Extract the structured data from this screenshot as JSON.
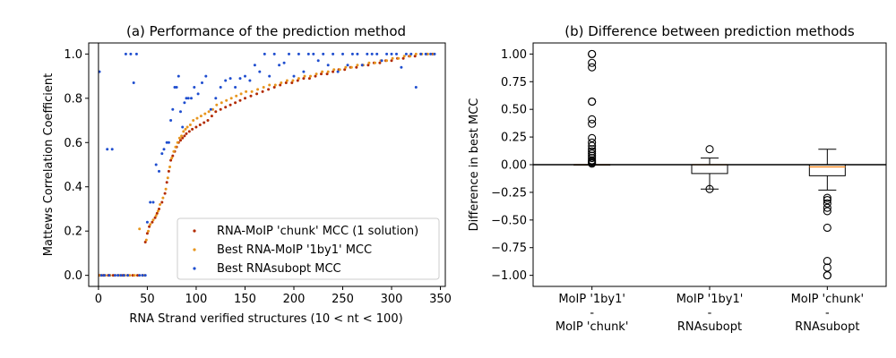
{
  "chart_data": [
    {
      "type": "scatter",
      "title": "(a) Performance of the prediction method",
      "xlabel": "RNA Strand verified structures (10 <  nt  < 100)",
      "ylabel": "Mattews Correlation Coefficient",
      "xlim": [
        -10,
        355
      ],
      "ylim": [
        -0.05,
        1.05
      ],
      "xticks": [
        0,
        50,
        100,
        150,
        200,
        250,
        300,
        350
      ],
      "xtick_labels": [
        "0",
        "50",
        "100",
        "150",
        "200",
        "250",
        "300",
        "350"
      ],
      "yticks": [
        0.0,
        0.2,
        0.4,
        0.6,
        0.8,
        1.0
      ],
      "ytick_labels": [
        "0.0",
        "0.2",
        "0.4",
        "0.6",
        "0.8",
        "1.0"
      ],
      "vline_x": 0,
      "grid": false,
      "legend_position": "lower-right",
      "series": [
        {
          "name": "RNA-MoIP 'chunk' MCC (1 solution)",
          "color": "#b22a00",
          "x": [
            1,
            5,
            10,
            15,
            20,
            25,
            30,
            35,
            40,
            45,
            48,
            50,
            52,
            55,
            58,
            60,
            62,
            65,
            68,
            70,
            72,
            74,
            76,
            78,
            80,
            82,
            84,
            86,
            88,
            90,
            93,
            96,
            100,
            104,
            108,
            112,
            116,
            120,
            125,
            130,
            135,
            140,
            145,
            150,
            156,
            162,
            168,
            174,
            180,
            186,
            192,
            198,
            204,
            210,
            216,
            222,
            228,
            234,
            240,
            246,
            252,
            258,
            264,
            270,
            276,
            282,
            288,
            294,
            300,
            306,
            312,
            318,
            324,
            330,
            336,
            342
          ],
          "y": [
            0.0,
            0.0,
            0.0,
            0.0,
            0.0,
            0.0,
            0.0,
            0.0,
            0.0,
            0.0,
            0.15,
            0.19,
            0.22,
            0.24,
            0.26,
            0.28,
            0.3,
            0.33,
            0.37,
            0.42,
            0.47,
            0.52,
            0.54,
            0.56,
            0.58,
            0.6,
            0.61,
            0.62,
            0.63,
            0.64,
            0.65,
            0.66,
            0.67,
            0.68,
            0.69,
            0.7,
            0.72,
            0.74,
            0.75,
            0.76,
            0.77,
            0.78,
            0.79,
            0.8,
            0.81,
            0.82,
            0.83,
            0.84,
            0.85,
            0.86,
            0.87,
            0.87,
            0.88,
            0.89,
            0.89,
            0.9,
            0.91,
            0.91,
            0.92,
            0.93,
            0.93,
            0.94,
            0.94,
            0.95,
            0.95,
            0.96,
            0.96,
            0.97,
            0.97,
            0.98,
            0.98,
            0.99,
            0.99,
            1.0,
            1.0,
            1.0
          ]
        },
        {
          "name": "Best RNA-MoIP '1by1' MCC",
          "color": "#e8961e",
          "x": [
            2,
            7,
            12,
            17,
            22,
            27,
            32,
            37,
            42,
            47,
            49,
            51,
            53,
            56,
            59,
            61,
            63,
            66,
            69,
            71,
            73,
            75,
            77,
            79,
            81,
            83,
            85,
            87,
            89,
            91,
            94,
            97,
            101,
            105,
            109,
            113,
            117,
            121,
            126,
            131,
            136,
            141,
            146,
            151,
            157,
            163,
            169,
            175,
            181,
            187,
            193,
            199,
            205,
            211,
            217,
            223,
            229,
            235,
            241,
            247,
            253,
            259,
            265,
            271,
            277,
            283,
            289,
            295,
            301,
            307,
            313,
            319,
            325,
            331,
            337,
            343
          ],
          "y": [
            0.0,
            0.0,
            0.0,
            0.0,
            0.0,
            0.0,
            0.0,
            0.0,
            0.21,
            0.0,
            0.16,
            0.2,
            0.23,
            0.25,
            0.27,
            0.29,
            0.32,
            0.35,
            0.39,
            0.44,
            0.49,
            0.53,
            0.56,
            0.58,
            0.6,
            0.62,
            0.63,
            0.65,
            0.66,
            0.67,
            0.68,
            0.7,
            0.71,
            0.72,
            0.73,
            0.74,
            0.75,
            0.77,
            0.78,
            0.79,
            0.8,
            0.81,
            0.82,
            0.83,
            0.83,
            0.84,
            0.85,
            0.86,
            0.86,
            0.87,
            0.88,
            0.88,
            0.89,
            0.9,
            0.9,
            0.91,
            0.92,
            0.92,
            0.93,
            0.93,
            0.94,
            0.94,
            0.95,
            0.95,
            0.96,
            0.96,
            0.97,
            0.97,
            0.98,
            0.98,
            0.99,
            0.99,
            1.0,
            1.0,
            1.0,
            1.0
          ]
        },
        {
          "name": "Best RNAsubopt MCC",
          "color": "#1f4ecf",
          "x": [
            1,
            3,
            6,
            9,
            11,
            14,
            17,
            20,
            23,
            26,
            28,
            30,
            33,
            36,
            39,
            42,
            45,
            48,
            50,
            53,
            56,
            59,
            62,
            65,
            67,
            70,
            72,
            74,
            76,
            78,
            80,
            82,
            84,
            86,
            88,
            90,
            92,
            95,
            98,
            102,
            106,
            110,
            115,
            120,
            125,
            130,
            135,
            140,
            145,
            150,
            155,
            160,
            165,
            170,
            175,
            180,
            185,
            190,
            195,
            200,
            205,
            210,
            215,
            220,
            225,
            230,
            235,
            240,
            245,
            250,
            255,
            260,
            265,
            270,
            275,
            280,
            285,
            290,
            295,
            300,
            305,
            310,
            315,
            320,
            325,
            330,
            335,
            340,
            344
          ],
          "y": [
            0.92,
            0.0,
            0.0,
            0.57,
            0.0,
            0.57,
            0.0,
            0.0,
            0.0,
            0.0,
            1.0,
            0.0,
            1.0,
            0.87,
            1.0,
            0.0,
            0.0,
            0.0,
            0.24,
            0.33,
            0.33,
            0.5,
            0.47,
            0.55,
            0.57,
            0.6,
            0.6,
            0.7,
            0.75,
            0.85,
            0.85,
            0.9,
            0.74,
            0.67,
            0.78,
            0.8,
            0.8,
            0.8,
            0.85,
            0.82,
            0.87,
            0.9,
            0.75,
            0.8,
            0.85,
            0.88,
            0.89,
            0.85,
            0.89,
            0.9,
            0.88,
            0.95,
            0.92,
            1.0,
            0.9,
            1.0,
            0.95,
            0.96,
            1.0,
            0.9,
            1.0,
            0.92,
            1.0,
            1.0,
            0.97,
            1.0,
            0.95,
            1.0,
            0.92,
            1.0,
            0.95,
            1.0,
            1.0,
            0.95,
            1.0,
            1.0,
            1.0,
            0.97,
            1.0,
            1.0,
            1.0,
            0.94,
            1.0,
            1.0,
            0.85,
            1.0,
            1.0,
            1.0,
            1.0
          ]
        }
      ]
    },
    {
      "type": "box",
      "title": "(b) Difference between prediction methods",
      "ylabel": "Difference in best MCC",
      "ylim": [
        -1.1,
        1.1
      ],
      "yticks": [
        -1.0,
        -0.75,
        -0.5,
        -0.25,
        0.0,
        0.25,
        0.5,
        0.75,
        1.0
      ],
      "ytick_labels": [
        "−1.00",
        "−0.75",
        "−0.50",
        "−0.25",
        "0.00",
        "0.25",
        "0.50",
        "0.75",
        "1.00"
      ],
      "hline_y": 0,
      "median_color": "#ff7f0e",
      "categories": [
        [
          "MoIP '1by1'",
          "-",
          "MoIP 'chunk'"
        ],
        [
          "MoIP '1by1'",
          "-",
          "RNAsubopt"
        ],
        [
          "MoIP 'chunk'",
          "-",
          "RNAsubopt"
        ]
      ],
      "boxes": [
        {
          "q1": 0.0,
          "median": 0.0,
          "q3": 0.0,
          "whisker_low": 0.0,
          "whisker_high": 0.0,
          "outliers": [
            1.0,
            1.0,
            0.92,
            0.88,
            0.57,
            0.57,
            0.41,
            0.37,
            0.24,
            0.2,
            0.17,
            0.14,
            0.12,
            0.1,
            0.08,
            0.06,
            0.04,
            0.03,
            0.02,
            0.01
          ]
        },
        {
          "q1": -0.08,
          "median": 0.0,
          "q3": 0.0,
          "whisker_low": -0.22,
          "whisker_high": 0.06,
          "outliers": [
            0.14,
            -0.22
          ]
        },
        {
          "q1": -0.1,
          "median": -0.02,
          "q3": 0.0,
          "whisker_low": -0.23,
          "whisker_high": 0.14,
          "outliers": [
            -0.3,
            -0.32,
            -0.35,
            -0.39,
            -0.42,
            -0.57,
            -0.87,
            -0.93,
            -1.0,
            -1.0
          ]
        }
      ]
    }
  ]
}
